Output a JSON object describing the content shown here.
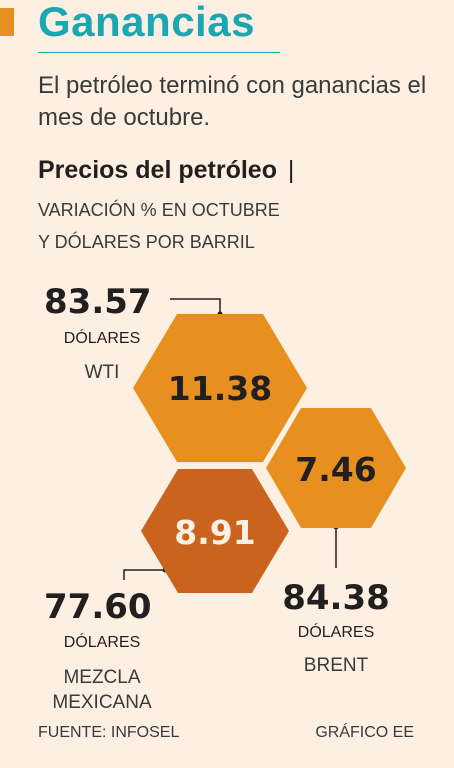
{
  "title": "Ganancias",
  "subtitle": "El petróleo terminó con ganancias el mes de octubre.",
  "section": {
    "heading": "Precios del petróleo",
    "separator": "|",
    "caption_line1": "VARIACIÓN % EN OCTUBRE",
    "caption_line2": "Y DÓLARES POR BARRIL"
  },
  "colors": {
    "accent": "#e8901f",
    "title": "#1aa7b4",
    "hex_orange": "#e8901f",
    "hex_dark_orange": "#c9631e",
    "background": "#fdf0e2"
  },
  "chart_data": {
    "type": "other",
    "items": [
      {
        "name": "WTI",
        "price_usd": "83.57",
        "unit": "DÓLARES",
        "change_pct": "11.38"
      },
      {
        "name": "BRENT",
        "price_usd": "84.38",
        "unit": "DÓLARES",
        "change_pct": "7.46"
      },
      {
        "name_line1": "MEZCLA",
        "name_line2": "MEXICANA",
        "price_usd": "77.60",
        "unit": "DÓLARES",
        "change_pct": "8.91"
      }
    ]
  },
  "footer": {
    "source": "FUENTE: INFOSEL",
    "credit": "GRÁFICO EE"
  }
}
